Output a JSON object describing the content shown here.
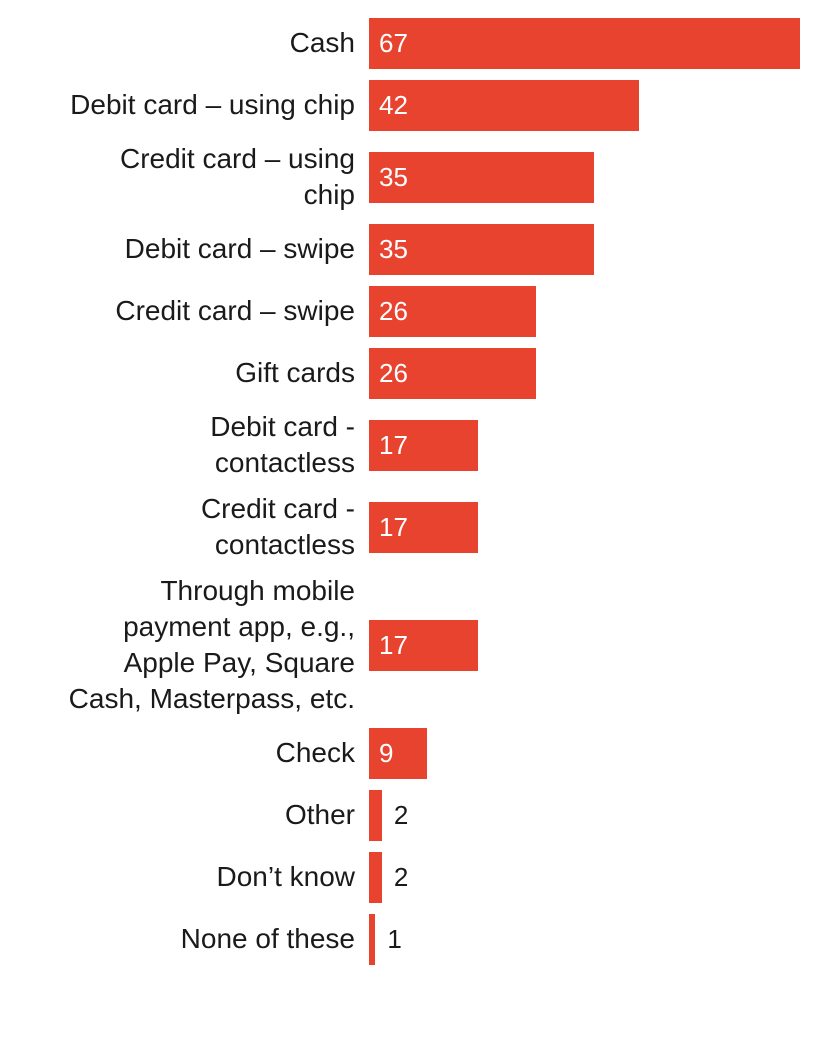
{
  "chart_data": {
    "type": "bar",
    "orientation": "horizontal",
    "color": "#e8432f",
    "categories": [
      "Cash",
      "Debit card – using chip",
      "Credit card – using chip",
      "Debit card – swipe",
      "Credit card – swipe",
      "Gift cards",
      "Debit card - contactless",
      "Credit card - contactless",
      "Through mobile payment app, e.g., Apple Pay, Square Cash, Masterpass, etc.",
      "Check",
      "Other",
      "Don’t know",
      "None of these"
    ],
    "values": [
      67,
      42,
      35,
      35,
      26,
      26,
      17,
      17,
      17,
      9,
      2,
      2,
      1
    ]
  }
}
